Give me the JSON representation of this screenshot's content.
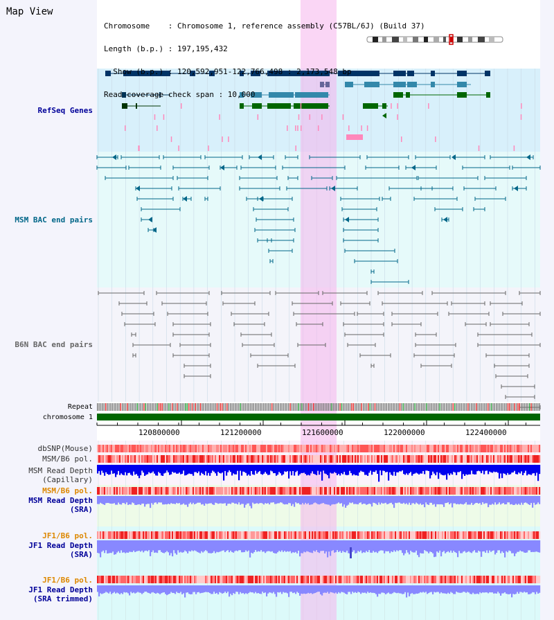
{
  "header": {
    "title": "Map View",
    "lines": [
      "Chromosome    : Chromosome 1, reference assembly (C57BL/6J) (Build 37)",
      "Length (b.p.) : 197,195,432",
      "  Show (b.p.) : 120,592,951-122,766,498 : 2,173,548 bp",
      "Read coverage check span : 10,000"
    ]
  },
  "tracks": {
    "refseq": "RefSeq Genes",
    "msm_bac": "MSM BAC end pairs",
    "b6n_bac": "B6N BAC end pairs",
    "repeat": "Repeat",
    "chromosome": "chromosome 1",
    "dbsnp": "dbSNP(Mouse)",
    "msm_b6_pol": "MSM/B6 pol.",
    "msm_depth_cap_1": "MSM Read Depth",
    "msm_depth_cap_2": "(Capillary)",
    "msm_b6_pol_2": "MSM/B6 pol.",
    "msm_depth_sra_1": "MSM Read Depth",
    "msm_depth_sra_2": "(SRA)",
    "jf1_b6_pol": "JF1/B6 pol.",
    "jf1_depth_sra_1": "JF1 Read Depth",
    "jf1_depth_sra_2": "(SRA)",
    "jf1_b6_pol_2": "JF1/B6 pol.",
    "jf1_depth_trim_1": "JF1 Read Depth",
    "jf1_depth_trim_2": "(SRA trimmed)"
  },
  "axis": {
    "ticks": [
      "120800000",
      "121200000",
      "121600000",
      "122000000",
      "122400000"
    ]
  },
  "colors": {
    "highlight": "#f6b4ec",
    "gene_dark": "#003366",
    "gene_mid": "#3388aa",
    "gene_green": "#006600",
    "pink": "#ff88bb",
    "msm_line": "#006688",
    "b6n_line": "#666666",
    "depth_blue": "#0000ee",
    "depth_light": "#8888ff",
    "chrom_green": "#006600",
    "label_blue": "#000099",
    "label_teal": "#006688",
    "label_orange": "#dd8800"
  }
}
